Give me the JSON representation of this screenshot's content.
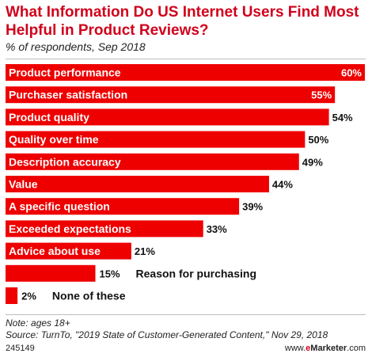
{
  "header": {
    "title": "What Information Do US Internet Users Find Most Helpful in Product Reviews?",
    "subtitle": "% of respondents, Sep 2018"
  },
  "footer": {
    "note": "Note: ages 18+",
    "source": "Source: TurnTo, \"2019 State of Customer-Generated Content,\" Nov 29, 2018",
    "chart_id": "245149",
    "brand_prefix": "www.",
    "brand_e": "e",
    "brand_name": "Marketer",
    "brand_suffix": ".com"
  },
  "colors": {
    "bar": "#ee0000",
    "title": "#d0021b"
  },
  "chart_data": {
    "type": "bar",
    "orientation": "horizontal",
    "title": "What Information Do US Internet Users Find Most Helpful in Product Reviews?",
    "subtitle": "% of respondents, Sep 2018",
    "categories": [
      "Product performance",
      "Purchaser satisfaction",
      "Product quality",
      "Quality over time",
      "Description accuracy",
      "Value",
      "A specific question",
      "Exceeded expectations",
      "Advice about use",
      "Reason for purchasing",
      "None of these"
    ],
    "values": [
      60,
      55,
      54,
      50,
      49,
      44,
      39,
      33,
      21,
      15,
      2
    ],
    "value_labels": [
      "60%",
      "55%",
      "54%",
      "50%",
      "49%",
      "44%",
      "39%",
      "33%",
      "21%",
      "15%",
      "2%"
    ],
    "xlim": [
      0,
      60
    ],
    "grid": false,
    "legend": "none"
  }
}
